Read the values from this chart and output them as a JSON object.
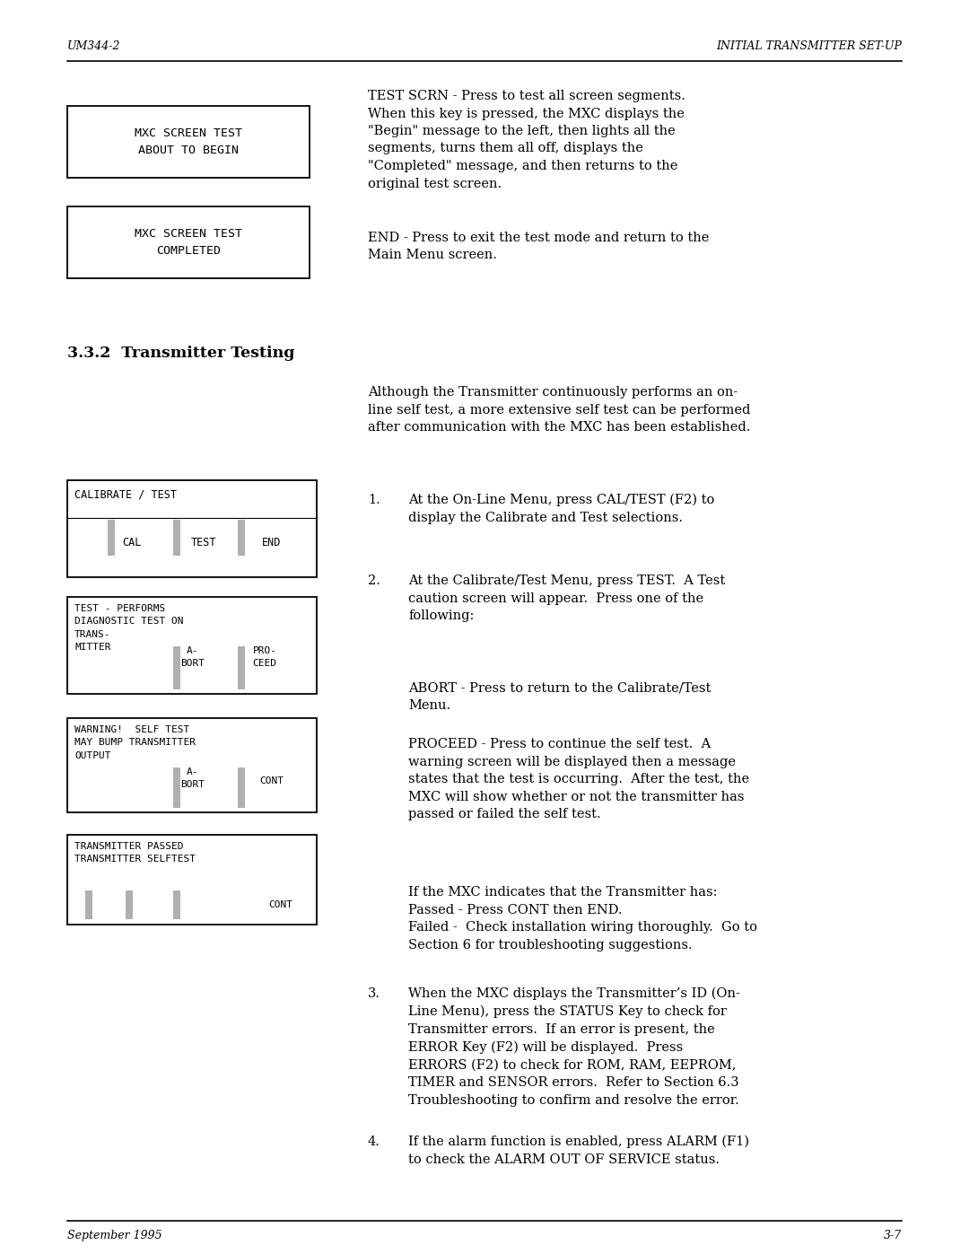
{
  "page_bg": "#ffffff",
  "header_left": "UM344-2",
  "header_right": "INITIAL TRANSMITTER SET-UP",
  "footer_left": "September 1995",
  "footer_right": "3-7",
  "section_title": "3.3.2  Transmitter Testing",
  "font_size_body": 10.5,
  "font_size_header": 9.0,
  "font_size_section": 12.5,
  "font_size_screen": 9.5,
  "font_size_mono": 8.5
}
